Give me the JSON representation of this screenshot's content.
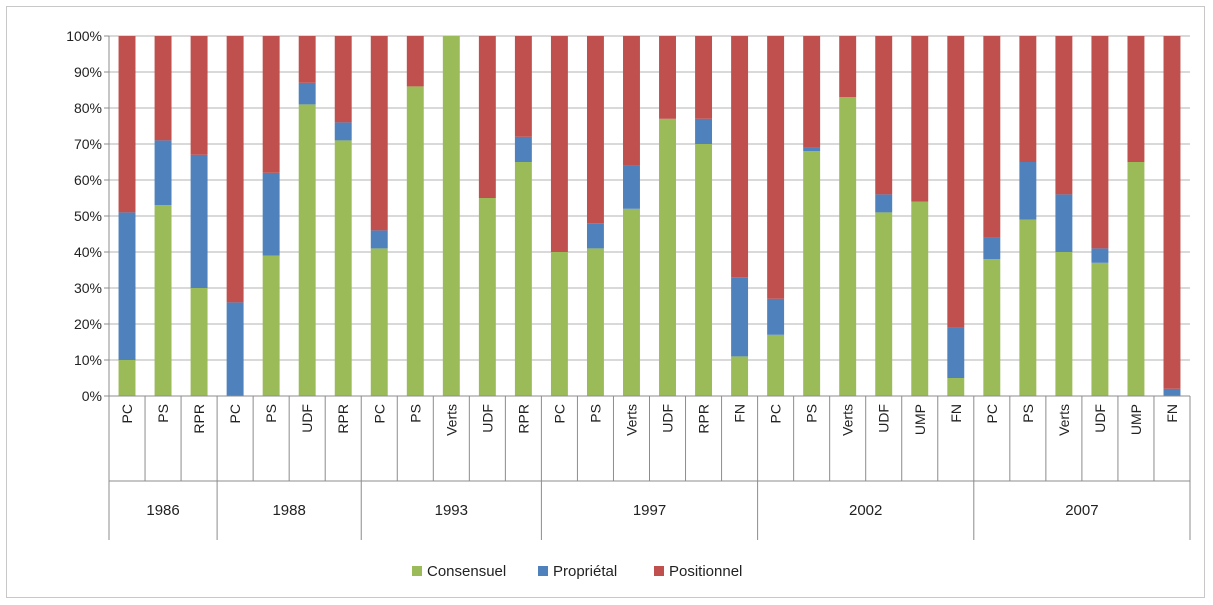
{
  "chart_data": {
    "type": "bar",
    "stacked": true,
    "percent": true,
    "ylim": [
      0,
      100
    ],
    "y_ticks": [
      "0%",
      "10%",
      "20%",
      "30%",
      "40%",
      "50%",
      "60%",
      "70%",
      "80%",
      "90%",
      "100%"
    ],
    "grid": true,
    "legend_position": "bottom",
    "groups": [
      {
        "label": "1986",
        "categories": [
          "PC",
          "PS",
          "RPR"
        ]
      },
      {
        "label": "1988",
        "categories": [
          "PC",
          "PS",
          "UDF",
          "RPR"
        ]
      },
      {
        "label": "1993",
        "categories": [
          "PC",
          "PS",
          "Verts",
          "UDF",
          "RPR"
        ]
      },
      {
        "label": "1997",
        "categories": [
          "PC",
          "PS",
          "Verts",
          "UDF",
          "RPR",
          "FN"
        ]
      },
      {
        "label": "2002",
        "categories": [
          "PC",
          "PS",
          "Verts",
          "UDF",
          "UMP",
          "FN"
        ]
      },
      {
        "label": "2007",
        "categories": [
          "PC",
          "PS",
          "Verts",
          "UDF",
          "UMP",
          "FN"
        ]
      }
    ],
    "series": [
      {
        "name": "Consensuel",
        "color": "#9bbb59",
        "values": [
          10,
          53,
          30,
          0,
          39,
          81,
          71,
          41,
          86,
          100,
          55,
          65,
          40,
          41,
          52,
          77,
          70,
          11,
          17,
          68,
          83,
          51,
          54,
          5,
          38,
          49,
          40,
          37,
          65,
          0
        ]
      },
      {
        "name": "Propriétal",
        "color": "#4f81bd",
        "values": [
          41,
          18,
          37,
          26,
          23,
          6,
          5,
          5,
          0,
          0,
          0,
          7,
          0,
          7,
          12,
          0,
          7,
          22,
          10,
          1,
          0,
          5,
          0,
          14,
          6,
          16,
          16,
          4,
          0,
          2
        ]
      },
      {
        "name": "Positionnel",
        "color": "#c0504d",
        "values": [
          49,
          29,
          33,
          74,
          38,
          13,
          24,
          54,
          14,
          0,
          45,
          28,
          60,
          52,
          36,
          23,
          23,
          67,
          73,
          31,
          17,
          44,
          46,
          81,
          56,
          35,
          44,
          59,
          35,
          98
        ]
      }
    ]
  }
}
